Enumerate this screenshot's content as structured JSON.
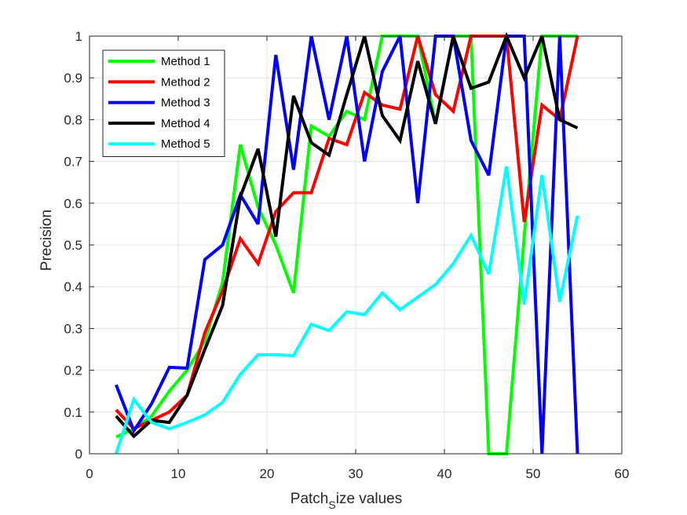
{
  "chart_data": {
    "type": "line",
    "xlabel_main": "Patch",
    "xlabel_sub": "S",
    "xlabel_rest": "ize values",
    "ylabel": "Precision",
    "xlim": [
      0,
      60
    ],
    "ylim": [
      0,
      1
    ],
    "xticks": [
      0,
      10,
      20,
      30,
      40,
      50,
      60
    ],
    "yticks": [
      0,
      0.1,
      0.2,
      0.3,
      0.4,
      0.5,
      0.6,
      0.7,
      0.8,
      0.9,
      1
    ],
    "xtick_labels": [
      "0",
      "10",
      "20",
      "30",
      "40",
      "50",
      "60"
    ],
    "ytick_labels": [
      "0",
      "0.1",
      "0.2",
      "0.3",
      "0.4",
      "0.5",
      "0.6",
      "0.7",
      "0.8",
      "0.9",
      "1"
    ],
    "grid": true,
    "legend_position": "top-left",
    "x": [
      3,
      5,
      7,
      9,
      11,
      13,
      15,
      17,
      19,
      21,
      23,
      25,
      27,
      29,
      31,
      33,
      35,
      37,
      39,
      41,
      43,
      45,
      47,
      49,
      51,
      53,
      55
    ],
    "series": [
      {
        "name": "Method 1",
        "color": "#00ff00",
        "values": [
          0.04,
          0.06,
          0.09,
          0.15,
          0.2,
          0.27,
          0.41,
          0.74,
          0.59,
          0.5,
          0.385,
          0.785,
          0.76,
          0.82,
          0.8,
          1.0,
          1.0,
          1.0,
          0.79,
          1.0,
          1.0,
          0.0,
          0.0,
          0.52,
          1.0,
          1.0,
          1.0
        ]
      },
      {
        "name": "Method 2",
        "color": "#ff0000",
        "values": [
          0.105,
          0.06,
          0.08,
          0.1,
          0.14,
          0.29,
          0.39,
          0.515,
          0.455,
          0.58,
          0.625,
          0.625,
          0.755,
          0.74,
          0.865,
          0.835,
          0.825,
          1.0,
          0.86,
          0.82,
          1.0,
          1.0,
          1.0,
          0.555,
          0.835,
          0.8,
          1.0
        ]
      },
      {
        "name": "Method 3",
        "color": "#0000ff",
        "values": [
          0.165,
          0.055,
          0.12,
          0.207,
          0.205,
          0.465,
          0.5,
          0.62,
          0.55,
          0.955,
          0.68,
          1.0,
          0.8,
          1.0,
          0.7,
          0.915,
          1.0,
          0.6,
          1.0,
          1.0,
          0.75,
          0.667,
          1.0,
          1.0,
          0.0,
          1.0,
          0.0
        ]
      },
      {
        "name": "Method 4",
        "color": "#000000",
        "values": [
          0.09,
          0.042,
          0.08,
          0.075,
          0.14,
          0.25,
          0.355,
          0.615,
          0.73,
          0.52,
          0.857,
          0.745,
          0.715,
          0.86,
          1.0,
          0.81,
          0.75,
          0.94,
          0.79,
          1.0,
          0.875,
          0.89,
          1.0,
          0.9,
          1.0,
          0.8,
          0.78
        ]
      },
      {
        "name": "Method 5",
        "color": "#00ffff",
        "values": [
          0.0,
          0.13,
          0.075,
          0.06,
          0.075,
          0.093,
          0.123,
          0.19,
          0.237,
          0.237,
          0.235,
          0.31,
          0.295,
          0.34,
          0.333,
          0.385,
          0.345,
          0.375,
          0.405,
          0.455,
          0.523,
          0.43,
          0.688,
          0.357,
          0.667,
          0.364,
          0.57
        ]
      }
    ]
  }
}
